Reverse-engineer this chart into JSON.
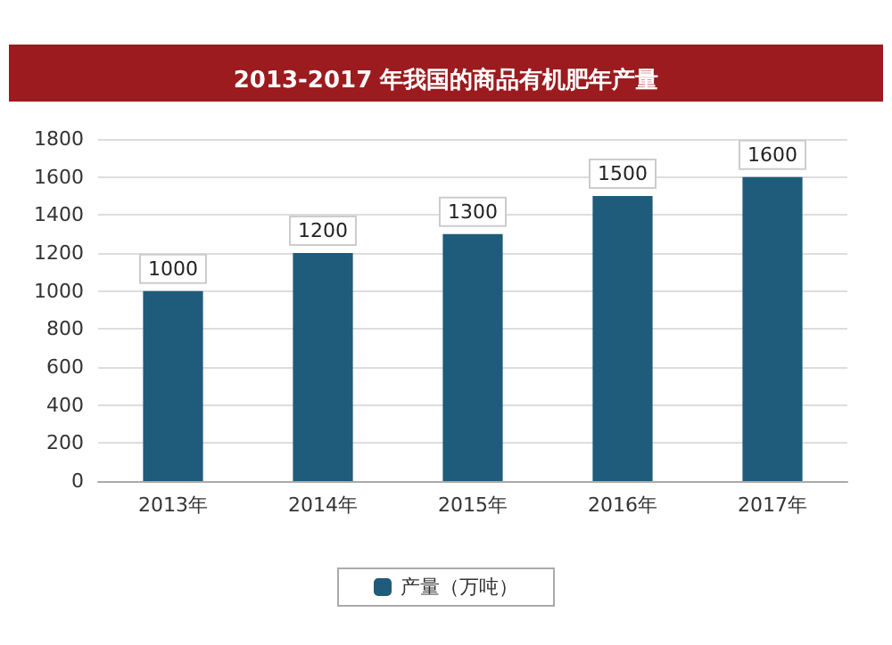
{
  "chart_data": {
    "type": "bar",
    "title": "2013-2017 年我国的商品有机肥年产量",
    "categories": [
      "2013年",
      "2014年",
      "2015年",
      "2016年",
      "2017年"
    ],
    "series": [
      {
        "name": "产量（万吨）",
        "color": "#1f5b7a",
        "values": [
          1000,
          1200,
          1300,
          1500,
          1600
        ]
      }
    ],
    "ylim": [
      0,
      1800
    ],
    "yticks": [
      0,
      200,
      400,
      600,
      800,
      1000,
      1200,
      1400,
      1600,
      1800
    ],
    "grid": "y",
    "legend": "bottom",
    "data_labels": true
  }
}
